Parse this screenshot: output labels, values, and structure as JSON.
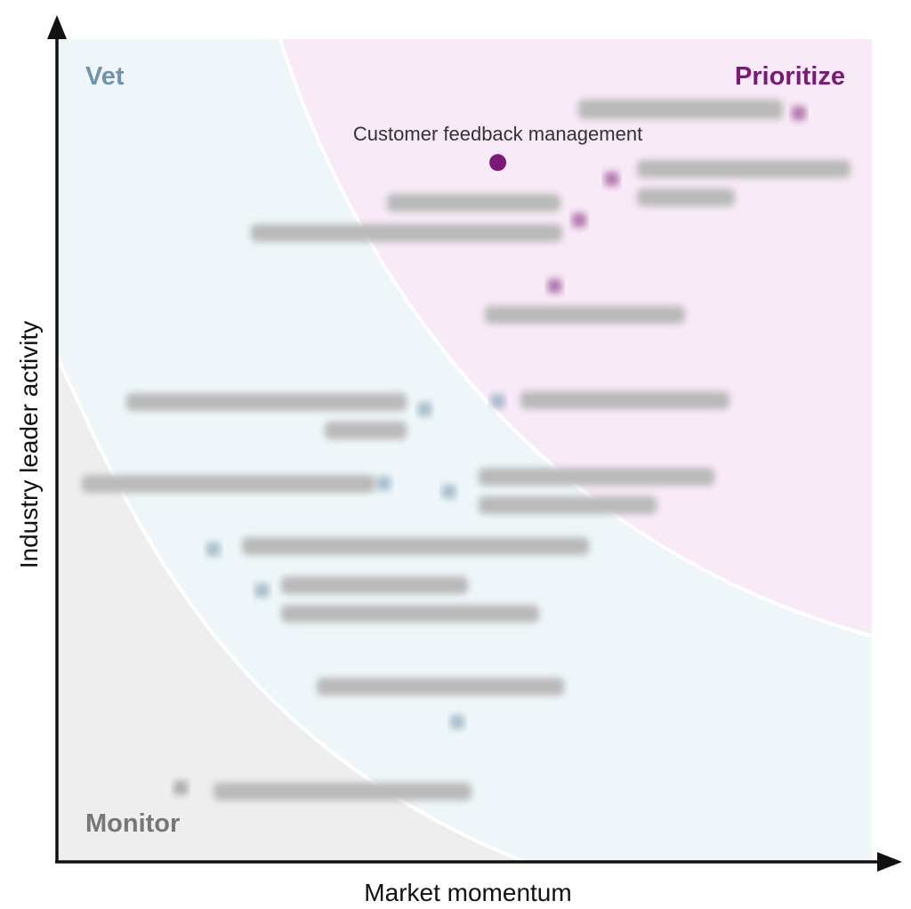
{
  "chart_data": {
    "type": "scatter",
    "xlabel": "Market momentum",
    "ylabel": "Industry leader activity",
    "xlim": [
      0,
      100
    ],
    "ylim": [
      0,
      100
    ],
    "grid": false,
    "zones": [
      {
        "name": "Vet",
        "color": "#6f93ab",
        "fill": "#eef6f9",
        "position": "top-left"
      },
      {
        "name": "Prioritize",
        "color": "#7b1a76",
        "fill": "#f8eaf7",
        "position": "top-right"
      },
      {
        "name": "Monitor",
        "color": "#777777",
        "fill": "#eeeeee",
        "position": "bottom-left"
      }
    ],
    "points": [
      {
        "label": "Customer feedback management",
        "x": 54,
        "y": 85,
        "zone": "Prioritize",
        "obscured": false
      },
      {
        "label": "",
        "x": 91,
        "y": 91,
        "zone": "Prioritize",
        "obscured": true
      },
      {
        "label": "",
        "x": 68,
        "y": 83,
        "zone": "Prioritize",
        "obscured": true
      },
      {
        "label": "",
        "x": 64,
        "y": 78,
        "zone": "Prioritize",
        "obscured": true
      },
      {
        "label": "",
        "x": 61,
        "y": 70,
        "zone": "Prioritize",
        "obscured": true
      },
      {
        "label": "",
        "x": 54,
        "y": 56,
        "zone": "Vet",
        "obscured": true
      },
      {
        "label": "",
        "x": 45,
        "y": 55,
        "zone": "Vet",
        "obscured": true
      },
      {
        "label": "",
        "x": 40,
        "y": 46,
        "zone": "Vet",
        "obscured": true
      },
      {
        "label": "",
        "x": 48,
        "y": 45,
        "zone": "Vet",
        "obscured": true
      },
      {
        "label": "",
        "x": 19,
        "y": 38,
        "zone": "Vet",
        "obscured": true
      },
      {
        "label": "",
        "x": 25,
        "y": 33,
        "zone": "Vet",
        "obscured": true
      },
      {
        "label": "",
        "x": 49,
        "y": 17,
        "zone": "Vet",
        "obscured": true
      },
      {
        "label": "",
        "x": 15,
        "y": 9,
        "zone": "Monitor",
        "obscured": true
      }
    ]
  }
}
